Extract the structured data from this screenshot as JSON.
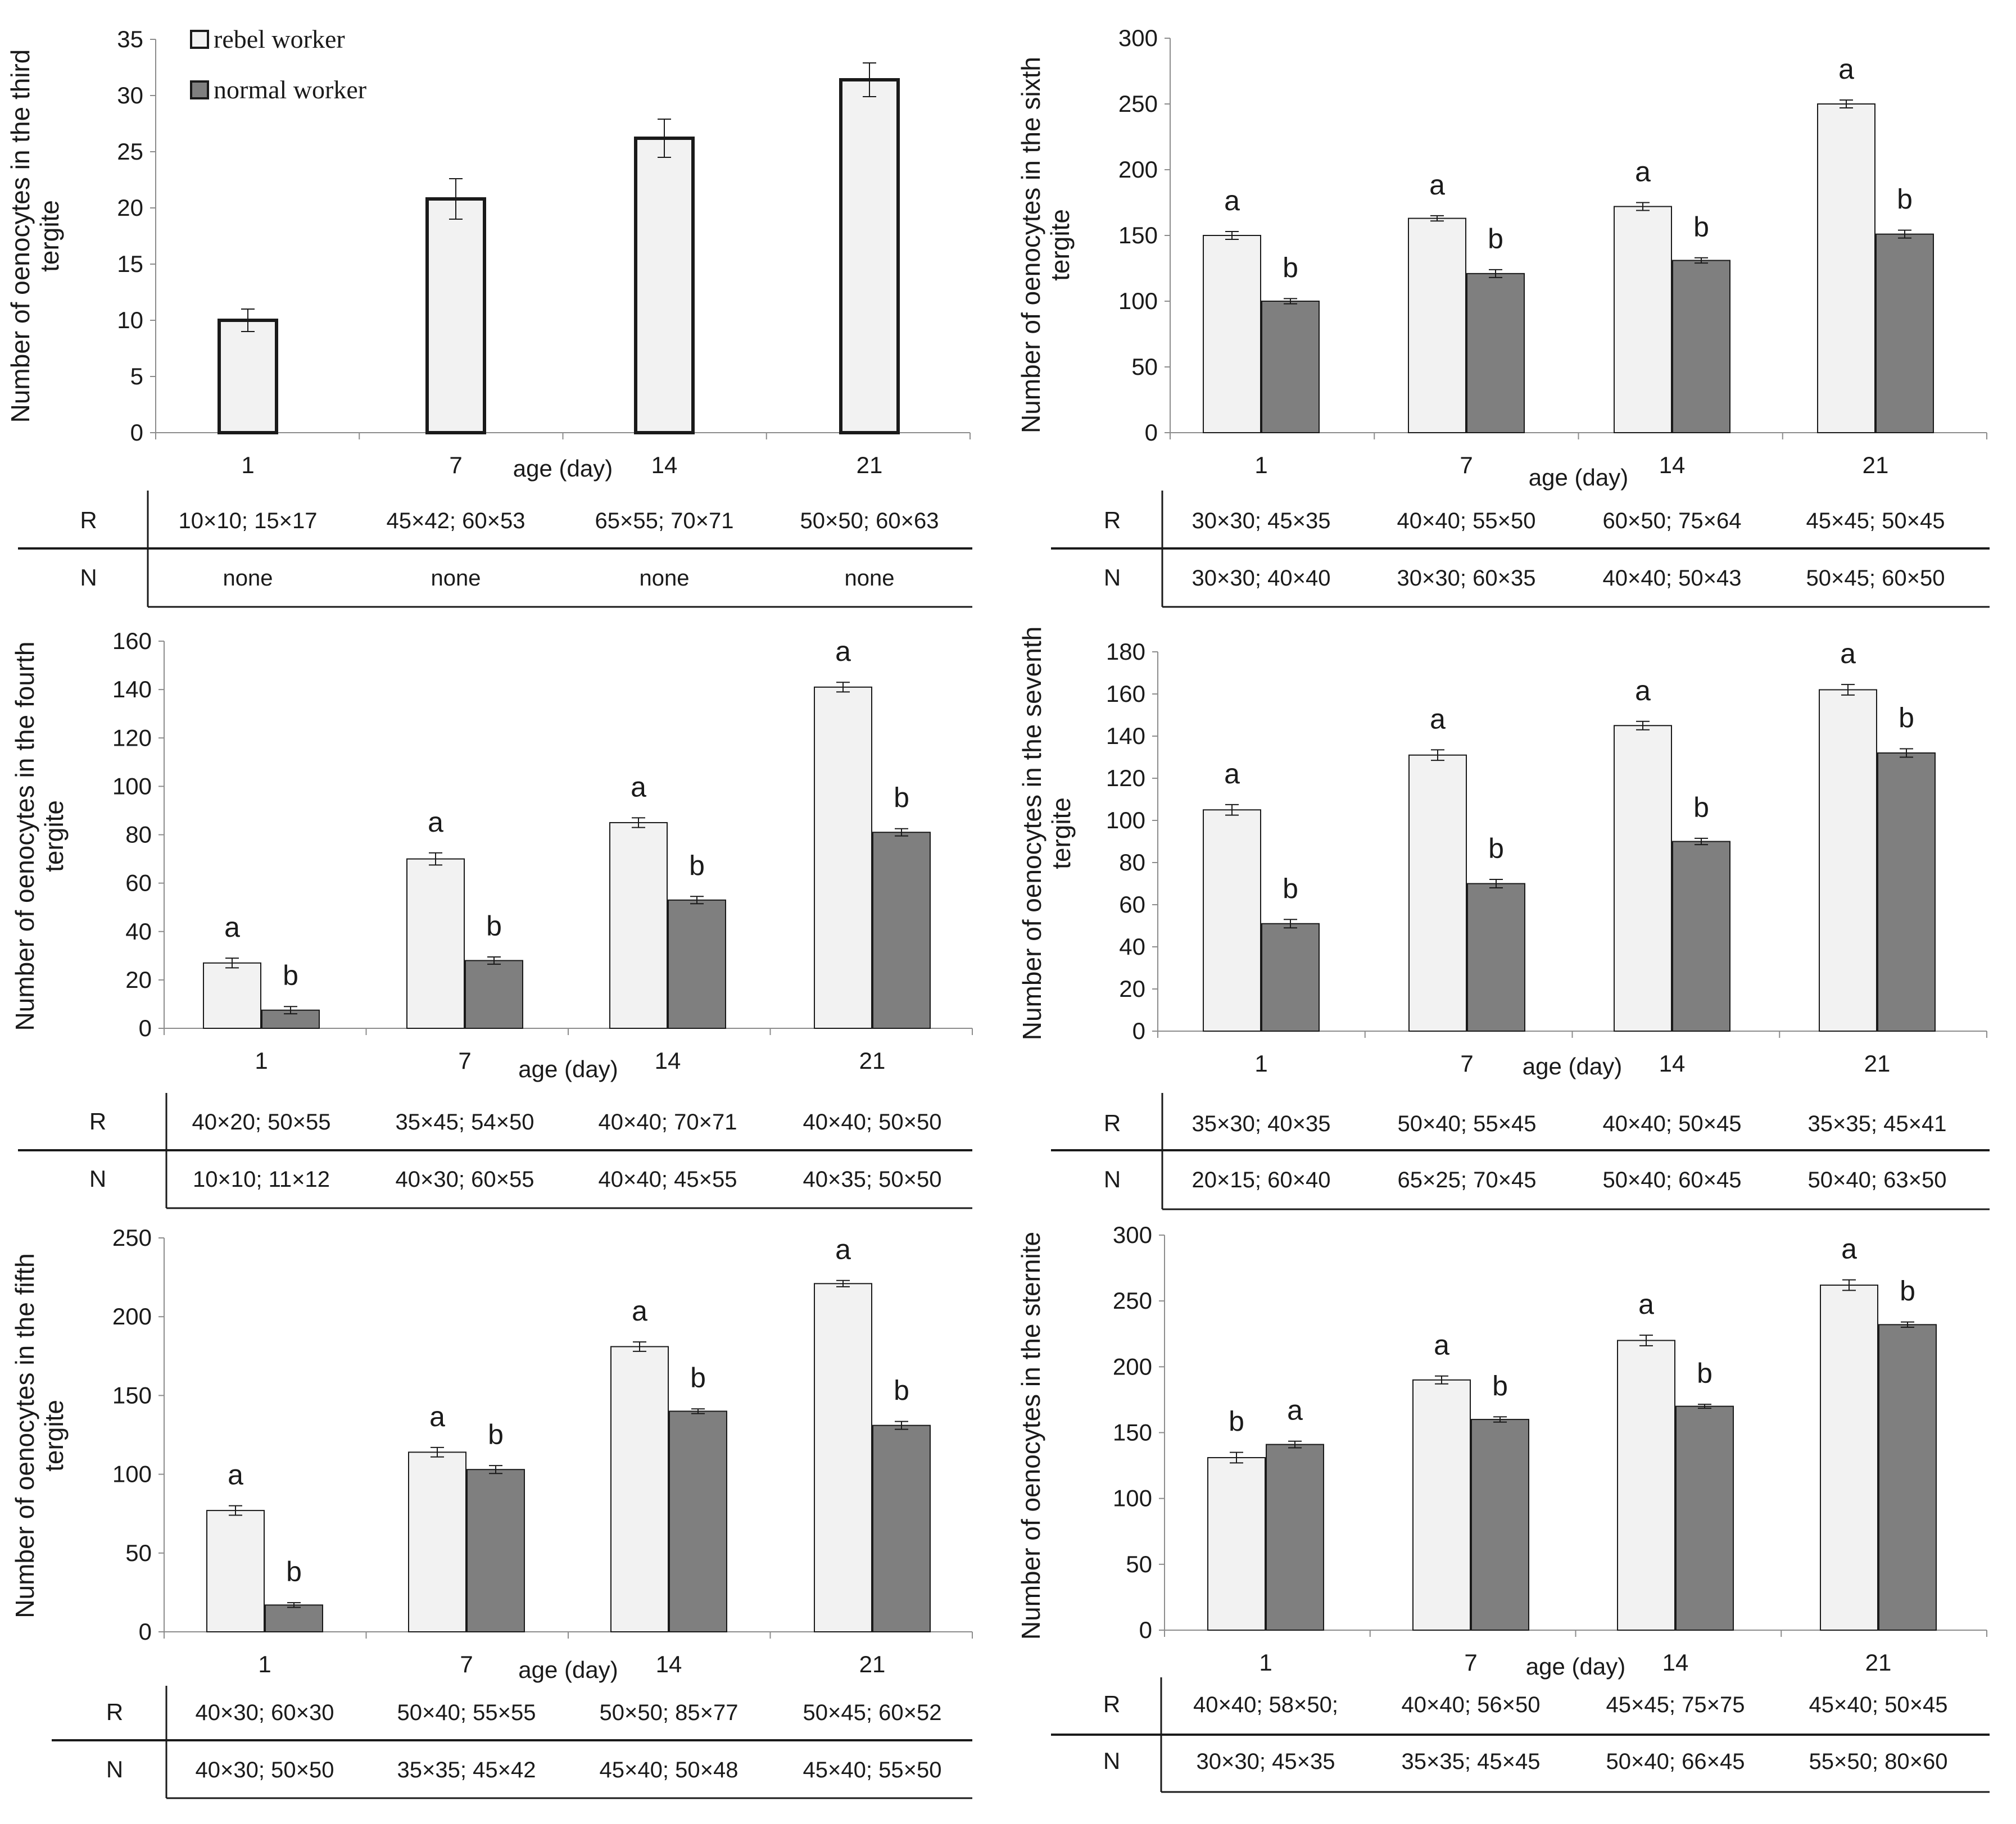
{
  "figure": {
    "legend": {
      "rebel": "rebel worker",
      "normal": "normal worker"
    },
    "colors": {
      "rebel_fill": "#f2f2f2",
      "normal_fill": "#7f7f7f",
      "stroke": "#1a1a1a"
    }
  },
  "chart_data": [
    {
      "type": "bar",
      "title": "",
      "xlabel": "age (day)",
      "ylabel": "Number of oenocytes in the third tergite",
      "ylim": [
        0,
        35
      ],
      "ystep": 5,
      "legend": "top-left",
      "categories": [
        "1",
        "7",
        "14",
        "21"
      ],
      "series": [
        {
          "name": "rebel worker",
          "values": [
            10,
            20.8,
            26.2,
            31.4
          ],
          "errors": [
            1.0,
            1.8,
            1.7,
            1.5
          ],
          "letters": [
            "",
            "",
            "",
            ""
          ]
        }
      ],
      "table": {
        "R_label": "R",
        "N_label": "N",
        "R": [
          "10×10; 15×17",
          "45×42; 60×53",
          "65×55; 70×71",
          "50×50; 60×63"
        ],
        "N": [
          "none",
          "none",
          "none",
          "none"
        ]
      }
    },
    {
      "type": "bar",
      "title": "",
      "xlabel": "age (day)",
      "ylabel": "Number of oenocytes in the sixth tergite",
      "ylim": [
        0,
        300
      ],
      "ystep": 50,
      "categories": [
        "1",
        "7",
        "14",
        "21"
      ],
      "series": [
        {
          "name": "rebel worker",
          "values": [
            150,
            163,
            172,
            250
          ],
          "errors": [
            3,
            2,
            3,
            3
          ],
          "letters": [
            "a",
            "a",
            "a",
            "a"
          ]
        },
        {
          "name": "normal worker",
          "values": [
            100,
            121,
            131,
            151
          ],
          "errors": [
            2,
            3,
            2,
            3
          ],
          "letters": [
            "b",
            "b",
            "b",
            "b"
          ]
        }
      ],
      "table": {
        "R_label": "R",
        "N_label": "N",
        "R": [
          "30×30; 45×35",
          "40×40; 55×50",
          "60×50; 75×64",
          "45×45; 50×45"
        ],
        "N": [
          "30×30; 40×40",
          "30×30; 60×35",
          "40×40; 50×43",
          "50×45; 60×50"
        ]
      }
    },
    {
      "type": "bar",
      "title": "",
      "xlabel": "age (day)",
      "ylabel": "Number of oenocytes in the fourth tergite",
      "ylim": [
        0,
        160
      ],
      "ystep": 20,
      "categories": [
        "1",
        "7",
        "14",
        "21"
      ],
      "series": [
        {
          "name": "rebel worker",
          "values": [
            27,
            70,
            85,
            141
          ],
          "errors": [
            2,
            2.5,
            2,
            2
          ],
          "letters": [
            "a",
            "a",
            "a",
            "a"
          ]
        },
        {
          "name": "normal worker",
          "values": [
            7.5,
            28,
            53,
            81
          ],
          "errors": [
            1.5,
            1.5,
            1.5,
            1.5
          ],
          "letters": [
            "b",
            "b",
            "b",
            "b"
          ]
        }
      ],
      "table": {
        "R_label": "R",
        "N_label": "N",
        "R": [
          "40×20; 50×55",
          "35×45; 54×50",
          "40×40; 70×71",
          "40×40; 50×50"
        ],
        "N": [
          "10×10; 11×12",
          "40×30; 60×55",
          "40×40; 45×55",
          "40×35; 50×50"
        ]
      }
    },
    {
      "type": "bar",
      "title": "",
      "xlabel": "age (day)",
      "ylabel": "Number of oenocytes in the seventh tergite",
      "ylim": [
        0,
        180
      ],
      "ystep": 20,
      "categories": [
        "1",
        "7",
        "14",
        "21"
      ],
      "series": [
        {
          "name": "rebel worker",
          "values": [
            105,
            131,
            145,
            162
          ],
          "errors": [
            2.5,
            2.5,
            2,
            2.5
          ],
          "letters": [
            "a",
            "a",
            "a",
            "a"
          ]
        },
        {
          "name": "normal worker",
          "values": [
            51,
            70,
            90,
            132
          ],
          "errors": [
            2,
            2,
            1.5,
            2
          ],
          "letters": [
            "b",
            "b",
            "b",
            "b"
          ]
        }
      ],
      "table": {
        "R_label": "R",
        "N_label": "N",
        "R": [
          "35×30; 40×35",
          "50×40; 55×45",
          "40×40; 50×45",
          "35×35; 45×41"
        ],
        "N": [
          "20×15; 60×40",
          "65×25; 70×45",
          "50×40; 60×45",
          "50×40; 63×50"
        ]
      }
    },
    {
      "type": "bar",
      "title": "",
      "xlabel": "age (day)",
      "ylabel": "Number of oenocytes in the fifth tergite",
      "ylim": [
        0,
        250
      ],
      "ystep": 50,
      "categories": [
        "1",
        "7",
        "14",
        "21"
      ],
      "series": [
        {
          "name": "rebel worker",
          "values": [
            77,
            114,
            181,
            221
          ],
          "errors": [
            3,
            3,
            3,
            2
          ],
          "letters": [
            "a",
            "a",
            "a",
            "a"
          ]
        },
        {
          "name": "normal worker",
          "values": [
            17,
            103,
            140,
            131
          ],
          "errors": [
            1.5,
            2.5,
            1.5,
            2.5
          ],
          "letters": [
            "b",
            "b",
            "b",
            "b"
          ]
        }
      ],
      "table": {
        "R_label": "R",
        "N_label": "N",
        "R": [
          "40×30; 60×30",
          "50×40; 55×55",
          "50×50; 85×77",
          "50×45; 60×52"
        ],
        "N": [
          "40×30; 50×50",
          "35×35; 45×42",
          "45×40; 50×48",
          "45×40; 55×50"
        ]
      }
    },
    {
      "type": "bar",
      "title": "",
      "xlabel": "age (day)",
      "ylabel": "Number of oenocytes in the sternite",
      "ylim": [
        0,
        300
      ],
      "ystep": 50,
      "categories": [
        "1",
        "7",
        "14",
        "21"
      ],
      "series": [
        {
          "name": "rebel worker",
          "values": [
            131,
            190,
            220,
            262
          ],
          "errors": [
            4,
            3,
            4,
            4
          ],
          "letters": [
            "b",
            "a",
            "a",
            "a"
          ]
        },
        {
          "name": "normal worker",
          "values": [
            141,
            160,
            170,
            232
          ],
          "errors": [
            2.5,
            2,
            1.5,
            2
          ],
          "letters": [
            "a",
            "b",
            "b",
            "b"
          ]
        }
      ],
      "table": {
        "R_label": "R",
        "N_label": "N",
        "R": [
          "40×40; 58×50;",
          "40×40; 56×50",
          "45×45; 75×75",
          "45×40; 50×45"
        ],
        "N": [
          "30×30; 45×35",
          "35×35; 45×45",
          "50×40; 66×45",
          "55×50; 80×60"
        ]
      }
    }
  ]
}
